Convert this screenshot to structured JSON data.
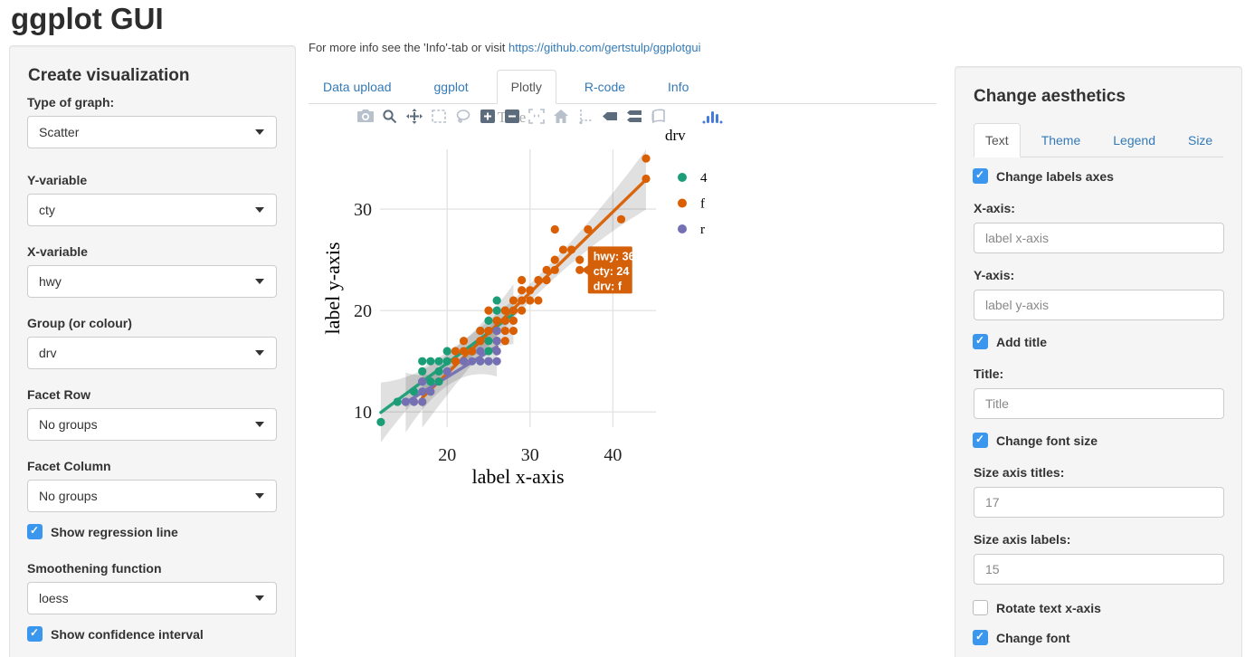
{
  "page": {
    "title": "ggplot GUI"
  },
  "left_panel": {
    "heading": "Create visualization",
    "fields": [
      {
        "label": "Type of graph:",
        "value": "Scatter"
      },
      {
        "label": "Y-variable",
        "value": "cty"
      },
      {
        "label": "X-variable",
        "value": "hwy"
      },
      {
        "label": "Group (or colour)",
        "value": "drv"
      },
      {
        "label": "Facet Row",
        "value": "No groups"
      },
      {
        "label": "Facet Column",
        "value": "No groups"
      }
    ],
    "show_regression": {
      "label": "Show regression line",
      "checked": true
    },
    "smoothing": {
      "label": "Smoothening function",
      "value": "loess"
    },
    "show_ci": {
      "label": "Show confidence interval",
      "checked": true
    }
  },
  "main": {
    "info_prefix": "For more info see the 'Info'-tab or visit ",
    "info_link": "https://github.com/gertstulp/ggplotgui",
    "tabs": [
      "Data upload",
      "ggplot",
      "Plotly",
      "R-code",
      "Info"
    ],
    "active_tab": "Plotly",
    "modebar_icons": [
      "camera-icon",
      "zoom-icon",
      "pan-icon",
      "box-select-icon",
      "lasso-select-icon",
      "zoom-in-icon",
      "zoom-out-icon",
      "autoscale-icon",
      "reset-axes-home-icon",
      "toggle-spikelines-icon",
      "hover-closest-icon",
      "hover-compare-icon",
      "chart-studio-icon",
      "plotly-logo-icon"
    ],
    "tooltip": {
      "lines": [
        "hwy: 36",
        "cty: 24",
        "drv: f"
      ],
      "bg": "#d4600a",
      "text_color": "#ffffff"
    }
  },
  "chart_data": {
    "type": "scatter",
    "title": "Title",
    "xlabel": "label x-axis",
    "ylabel": "label y-axis",
    "legend_title": "drv",
    "xlim": [
      11.9,
      45.2
    ],
    "ylim": [
      8.5,
      35.9
    ],
    "xticks": [
      20,
      30,
      40
    ],
    "yticks": [
      10,
      20,
      30
    ],
    "grid": true,
    "grid_color": "#e4e4e4",
    "tick_color": "#222222",
    "title_color": "#aaaaaa",
    "smoother": {
      "type": "loess",
      "confidence_interval": true,
      "band_color": "rgba(0,0,0,0.12)"
    },
    "series": [
      {
        "name": "4",
        "color": "#1b9e77",
        "points": [
          [
            12,
            9
          ],
          [
            14,
            11
          ],
          [
            15,
            11
          ],
          [
            16,
            12
          ],
          [
            17,
            13
          ],
          [
            18,
            13
          ],
          [
            19,
            13
          ],
          [
            17,
            14
          ],
          [
            19,
            14
          ],
          [
            17,
            15
          ],
          [
            18,
            15
          ],
          [
            19,
            15
          ],
          [
            20,
            15
          ],
          [
            20,
            16
          ],
          [
            23,
            16
          ],
          [
            24,
            15
          ],
          [
            25,
            15
          ],
          [
            25,
            16
          ],
          [
            24,
            17
          ],
          [
            25,
            17
          ],
          [
            26,
            17
          ],
          [
            24,
            18
          ],
          [
            25,
            18
          ],
          [
            26,
            18
          ],
          [
            25,
            19
          ],
          [
            26,
            19
          ],
          [
            27,
            19
          ],
          [
            26,
            20
          ],
          [
            27,
            20
          ],
          [
            28,
            20
          ],
          [
            26,
            21
          ]
        ]
      },
      {
        "name": "f",
        "color": "#d95f02",
        "points": [
          [
            17,
            11
          ],
          [
            21,
            15
          ],
          [
            22,
            15
          ],
          [
            21,
            16
          ],
          [
            22,
            16
          ],
          [
            23,
            16
          ],
          [
            26,
            16
          ],
          [
            22,
            17
          ],
          [
            24,
            17
          ],
          [
            26,
            17
          ],
          [
            27,
            17
          ],
          [
            24,
            18
          ],
          [
            25,
            18
          ],
          [
            26,
            18
          ],
          [
            27,
            18
          ],
          [
            28,
            18
          ],
          [
            26,
            19
          ],
          [
            27,
            19
          ],
          [
            28,
            19
          ],
          [
            25,
            20
          ],
          [
            27,
            20
          ],
          [
            28,
            20
          ],
          [
            29,
            20
          ],
          [
            28,
            21
          ],
          [
            29,
            21
          ],
          [
            30,
            21
          ],
          [
            31,
            21
          ],
          [
            29,
            22
          ],
          [
            30,
            22
          ],
          [
            29,
            23
          ],
          [
            31,
            23
          ],
          [
            32,
            23
          ],
          [
            32,
            24
          ],
          [
            33,
            24
          ],
          [
            36,
            24
          ],
          [
            33,
            25
          ],
          [
            36,
            25
          ],
          [
            34,
            26
          ],
          [
            35,
            26
          ],
          [
            33,
            28
          ],
          [
            37,
            28
          ],
          [
            41,
            29
          ],
          [
            44,
            33
          ],
          [
            44,
            35
          ]
        ]
      },
      {
        "name": "r",
        "color": "#7570b3",
        "points": [
          [
            15,
            11
          ],
          [
            16,
            11
          ],
          [
            17,
            11
          ],
          [
            17,
            12
          ],
          [
            18,
            12
          ],
          [
            17,
            13
          ],
          [
            20,
            14
          ],
          [
            22,
            15
          ],
          [
            23,
            15
          ],
          [
            24,
            15
          ],
          [
            25,
            15
          ],
          [
            26,
            15
          ],
          [
            24,
            16
          ],
          [
            26,
            16
          ],
          [
            26,
            17
          ],
          [
            26,
            18
          ]
        ]
      }
    ],
    "hover_point": {
      "series": "f",
      "hwy": 36,
      "cty": 24
    },
    "legend_position": "right"
  },
  "right_panel": {
    "heading": "Change aesthetics",
    "tabs": [
      "Text",
      "Theme",
      "Legend",
      "Size"
    ],
    "active_tab": "Text",
    "change_labels_axes": {
      "label": "Change labels axes",
      "checked": true
    },
    "x_axis": {
      "label": "X-axis:",
      "value": "label x-axis"
    },
    "y_axis": {
      "label": "Y-axis:",
      "value": "label y-axis"
    },
    "add_title": {
      "label": "Add title",
      "checked": true
    },
    "title_field": {
      "label": "Title:",
      "value": "Title"
    },
    "change_font_size": {
      "label": "Change font size",
      "checked": true
    },
    "size_axis_titles": {
      "label": "Size axis titles:",
      "value": "17"
    },
    "size_axis_labels": {
      "label": "Size axis labels:",
      "value": "15"
    },
    "rotate_text_x_axis": {
      "label": "Rotate text x-axis",
      "checked": false
    },
    "change_font": {
      "label": "Change font",
      "checked": true
    }
  }
}
